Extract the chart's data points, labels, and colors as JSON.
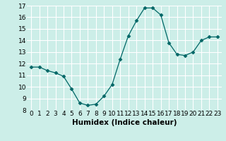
{
  "x": [
    0,
    1,
    2,
    3,
    4,
    5,
    6,
    7,
    8,
    9,
    10,
    11,
    12,
    13,
    14,
    15,
    16,
    17,
    18,
    19,
    20,
    21,
    22,
    23
  ],
  "y": [
    11.7,
    11.7,
    11.4,
    11.2,
    10.9,
    9.8,
    8.6,
    8.4,
    8.5,
    9.2,
    10.2,
    12.4,
    14.4,
    15.7,
    16.8,
    16.8,
    16.2,
    13.8,
    12.8,
    12.7,
    13.0,
    14.0,
    14.3,
    14.3
  ],
  "xlabel": "Humidex (Indice chaleur)",
  "ylim": [
    8,
    17
  ],
  "xlim": [
    -0.5,
    23.5
  ],
  "yticks": [
    8,
    9,
    10,
    11,
    12,
    13,
    14,
    15,
    16,
    17
  ],
  "xticks": [
    0,
    1,
    2,
    3,
    4,
    5,
    6,
    7,
    8,
    9,
    10,
    11,
    12,
    13,
    14,
    15,
    16,
    17,
    18,
    19,
    20,
    21,
    22,
    23
  ],
  "line_color": "#006666",
  "marker": "D",
  "marker_size": 2.5,
  "bg_color": "#cceee8",
  "grid_color": "#ffffff",
  "xlabel_fontsize": 7.5,
  "tick_fontsize": 6.5
}
